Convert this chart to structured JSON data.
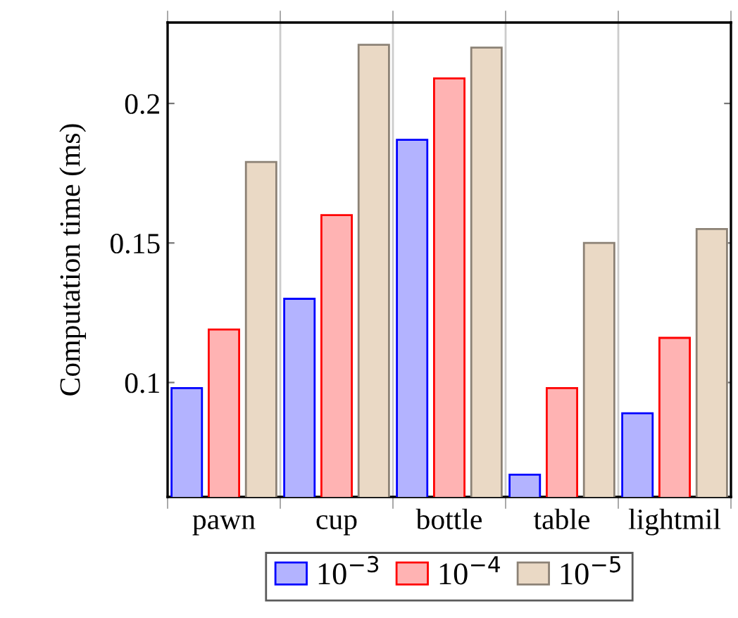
{
  "chart_data": {
    "type": "bar",
    "ylabel": "Computation time (ms)",
    "categories": [
      "pawn",
      "cup",
      "bottle",
      "table",
      "lightmil"
    ],
    "series": [
      {
        "name": "10$^{−3}$",
        "color": "#b3b3ff",
        "values": [
          0.098,
          0.13,
          0.187,
          0.067,
          0.089
        ]
      },
      {
        "name": "10$^{−4}$",
        "color": "#ffb3b3",
        "values": [
          0.119,
          0.16,
          0.209,
          0.098,
          0.116
        ]
      },
      {
        "name": "10$^{−5}$",
        "color": "#ead9c5",
        "values": [
          0.179,
          0.221,
          0.22,
          0.15,
          0.155
        ]
      }
    ],
    "ylim": [
      0.059,
      0.229
    ],
    "yticks": [
      0.1,
      0.15,
      0.2
    ],
    "grid": "x",
    "legend": "bottom"
  }
}
